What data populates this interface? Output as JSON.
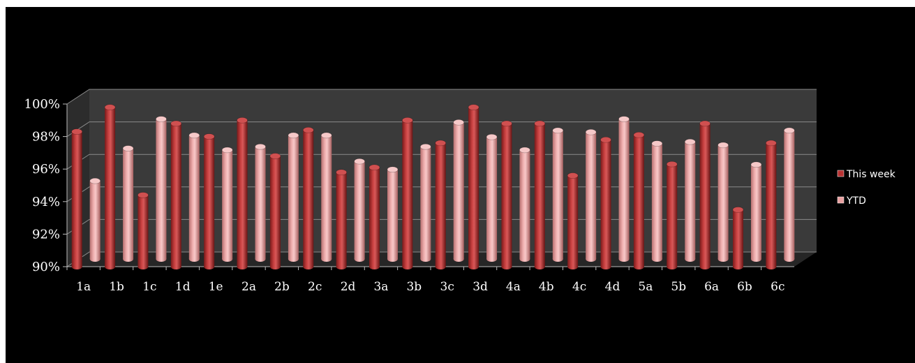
{
  "chart_data": {
    "type": "bar",
    "style": "3d-cylinder",
    "categories": [
      "1a",
      "1b",
      "1c",
      "1d",
      "1e",
      "2a",
      "2b",
      "2c",
      "2d",
      "3a",
      "3b",
      "3c",
      "3d",
      "4a",
      "4b",
      "4c",
      "4d",
      "5a",
      "5b",
      "6a",
      "6b",
      "6c"
    ],
    "series": [
      {
        "name": "This week",
        "color": "#b83232",
        "values": [
          98.3,
          99.8,
          94.4,
          98.8,
          98.0,
          99.0,
          96.8,
          98.4,
          95.8,
          96.1,
          99.0,
          97.6,
          99.8,
          98.8,
          98.8,
          95.6,
          97.8,
          98.1,
          96.3,
          98.8,
          93.5,
          97.6
        ]
      },
      {
        "name": "YTD",
        "color": "#e8a0a0",
        "values": [
          94.8,
          96.8,
          98.6,
          97.6,
          96.7,
          96.9,
          97.6,
          97.6,
          96.0,
          95.5,
          96.9,
          98.4,
          97.5,
          96.7,
          97.9,
          97.8,
          98.6,
          97.1,
          97.2,
          97.0,
          95.8,
          97.9
        ]
      }
    ],
    "title": "",
    "xlabel": "",
    "ylabel": "",
    "ylim": [
      90,
      100
    ],
    "yticks": [
      "90%",
      "92%",
      "94%",
      "96%",
      "98%",
      "100%"
    ],
    "grid": true,
    "legend_position": "right",
    "background": "#000000",
    "plot_wall_color": "#3a3a3a"
  }
}
